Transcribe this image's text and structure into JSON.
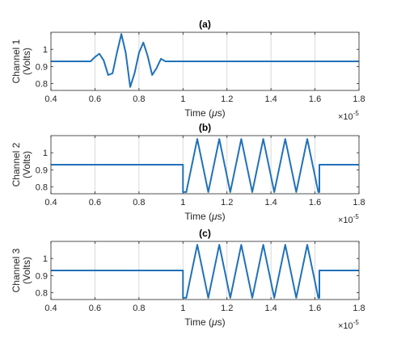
{
  "figure": {
    "x_exponent_prefix": "×10",
    "x_exponent_power": "-5"
  },
  "chart_data": [
    {
      "type": "line",
      "title": "(a)",
      "xlabel_prefix": "Time (",
      "xlabel_unit_symbol": "μ",
      "xlabel_suffix": "s)",
      "ylabel_line1": "Channel 1",
      "ylabel_line2": "(Volts)",
      "xlim": [
        0.4,
        1.8
      ],
      "ylim": [
        0.76,
        1.1
      ],
      "x_ticks": [
        "0.4",
        "0.6",
        "0.8",
        "1",
        "1.2",
        "1.4",
        "1.6",
        "1.8"
      ],
      "y_ticks": [
        "0.8",
        "0.9",
        "1"
      ],
      "grid": "vertical",
      "series_color": "#2071b8",
      "series": [
        {
          "x": [
            0.4,
            0.58,
            0.6,
            0.62,
            0.64,
            0.66,
            0.68,
            0.7,
            0.72,
            0.74,
            0.76,
            0.78,
            0.8,
            0.82,
            0.84,
            0.86,
            0.88,
            0.9,
            0.92,
            1.0,
            1.2,
            1.4,
            1.6,
            1.8
          ],
          "y": [
            0.93,
            0.93,
            0.955,
            0.975,
            0.935,
            0.85,
            0.86,
            0.98,
            1.09,
            0.98,
            0.78,
            0.86,
            0.98,
            1.04,
            0.96,
            0.85,
            0.89,
            0.945,
            0.93,
            0.93,
            0.93,
            0.93,
            0.93,
            0.93
          ]
        }
      ]
    },
    {
      "type": "line",
      "title": "(b)",
      "xlabel_prefix": "Time (",
      "xlabel_unit_symbol": "μ",
      "xlabel_suffix": "s)",
      "ylabel_line1": "Channel 2",
      "ylabel_line2": "(Volts)",
      "xlim": [
        0.4,
        1.8
      ],
      "ylim": [
        0.76,
        1.1
      ],
      "x_ticks": [
        "0.4",
        "0.6",
        "0.8",
        "1",
        "1.2",
        "1.4",
        "1.6",
        "1.8"
      ],
      "y_ticks": [
        "0.8",
        "0.9",
        "1"
      ],
      "grid": "vertical",
      "series_color": "#2071b8",
      "series": [
        {
          "x": [
            0.4,
            1.0,
            1.0,
            1.015,
            1.065,
            1.115,
            1.165,
            1.215,
            1.265,
            1.315,
            1.365,
            1.415,
            1.465,
            1.515,
            1.565,
            1.615,
            1.62,
            1.62,
            1.8
          ],
          "y": [
            0.93,
            0.93,
            0.77,
            0.77,
            1.08,
            0.77,
            1.08,
            0.77,
            1.08,
            0.77,
            1.08,
            0.77,
            1.08,
            0.77,
            1.08,
            0.77,
            0.77,
            0.93,
            0.93
          ]
        }
      ]
    },
    {
      "type": "line",
      "title": "(c)",
      "xlabel_prefix": "Time (",
      "xlabel_unit_symbol": "μ",
      "xlabel_suffix": "s)",
      "ylabel_line1": "Channel 3",
      "ylabel_line2": "(Volts)",
      "xlim": [
        0.4,
        1.8
      ],
      "ylim": [
        0.76,
        1.1
      ],
      "x_ticks": [
        "0.4",
        "0.6",
        "0.8",
        "1",
        "1.2",
        "1.4",
        "1.6",
        "1.8"
      ],
      "y_ticks": [
        "0.8",
        "0.9",
        "1"
      ],
      "grid": "vertical",
      "series_color": "#2071b8",
      "series": [
        {
          "x": [
            0.4,
            1.0,
            1.0,
            1.015,
            1.065,
            1.115,
            1.165,
            1.215,
            1.265,
            1.315,
            1.365,
            1.415,
            1.465,
            1.515,
            1.565,
            1.615,
            1.62,
            1.62,
            1.8
          ],
          "y": [
            0.93,
            0.93,
            0.77,
            0.77,
            1.08,
            0.77,
            1.08,
            0.77,
            1.08,
            0.77,
            1.08,
            0.77,
            1.08,
            0.77,
            1.08,
            0.77,
            0.77,
            0.93,
            0.93
          ]
        }
      ]
    }
  ]
}
